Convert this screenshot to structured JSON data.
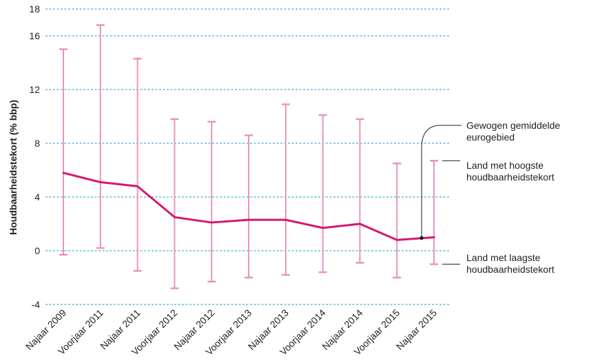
{
  "chart_data": {
    "type": "line",
    "ylabel": "Houdbaarheidstekort (% bbp)",
    "xlabel": "",
    "ylim": [
      -4,
      18
    ],
    "yticks": [
      -4,
      0,
      4,
      8,
      12,
      16,
      18
    ],
    "grid": true,
    "categories": [
      "Najaar 2009",
      "Voorjaar 2011",
      "Najaar 2011",
      "Voorjaar 2012",
      "Najaar 2012",
      "Voorjaar 2013",
      "Najaar 2013",
      "Voorjaar 2014",
      "Najaar 2014",
      "Voorjaar 2015",
      "Najaar 2015"
    ],
    "series": [
      {
        "name": "Gewogen gemiddelde eurogebied",
        "values": [
          5.8,
          5.1,
          4.8,
          2.5,
          2.1,
          2.3,
          2.3,
          1.7,
          2.0,
          0.8,
          1.0
        ]
      },
      {
        "name": "Land met hoogste houdbaarheidstekort",
        "values": [
          15.0,
          16.8,
          14.3,
          9.8,
          9.6,
          8.6,
          10.9,
          10.1,
          9.8,
          6.5,
          6.7
        ]
      },
      {
        "name": "Land met laagste houdbaarheidstekort",
        "values": [
          -0.3,
          0.2,
          -1.5,
          -2.8,
          -2.3,
          -2.0,
          -1.8,
          -1.6,
          -0.9,
          -2.0,
          -1.0
        ]
      }
    ],
    "annotations": [
      {
        "lines": [
          "Gewogen gemiddelde",
          "eurogebied"
        ]
      },
      {
        "lines": [
          "Land met hoogste",
          "houdbaarheidstekort"
        ]
      },
      {
        "lines": [
          "Land met laagste",
          "houdbaarheidstekort"
        ]
      }
    ],
    "colors": {
      "line": "#d4186c",
      "range": "#e893c2",
      "grid": "#3fb0cf",
      "leader": "#222222"
    }
  }
}
